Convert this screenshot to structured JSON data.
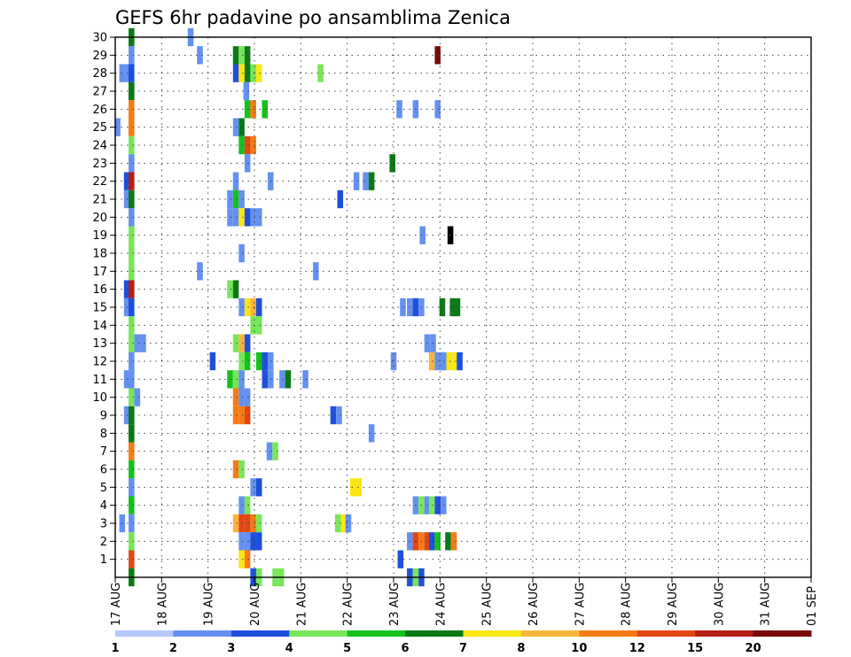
{
  "chart_data": {
    "type": "heatmap",
    "title": "GEFS 6hr padavine po ansamblima Zenica",
    "x_tick_labels": [
      "17 AUG",
      "18 AUG",
      "19 AUG",
      "20 AUG",
      "21 AUG",
      "22 AUG",
      "23 AUG",
      "24 AUG",
      "25 AUG",
      "26 AUG",
      "27 AUG",
      "28 AUG",
      "29 AUG",
      "30 AUG",
      "31 AUG",
      "01 SEP"
    ],
    "y_tick_labels": [
      "1",
      "2",
      "3",
      "4",
      "5",
      "6",
      "7",
      "8",
      "9",
      "10",
      "11",
      "12",
      "13",
      "14",
      "15",
      "16",
      "17",
      "18",
      "19",
      "20",
      "21",
      "22",
      "23",
      "24",
      "25",
      "26",
      "27",
      "28",
      "29",
      "30"
    ],
    "xlim": [
      0,
      60
    ],
    "ylim": [
      0,
      30
    ],
    "grid": true,
    "colorbar": {
      "levels": [
        "1",
        "2",
        "3",
        "4",
        "5",
        "6",
        "7",
        "8",
        "10",
        "12",
        "15",
        "20"
      ],
      "colors": [
        "#b4c8fa",
        "#6490f0",
        "#1e50dc",
        "#78e65a",
        "#16c11c",
        "#0a7a14",
        "#fae614",
        "#fab43c",
        "#f57c14",
        "#e14614",
        "#b41e14",
        "#780a0a"
      ]
    },
    "x_unit": "6-hour step since 17 AUG 00Z",
    "y_unit": "ensemble member",
    "cells": [
      [
        1.4,
        30,
        5
      ],
      [
        6.5,
        30,
        1
      ],
      [
        1.4,
        29,
        1
      ],
      [
        7.3,
        29,
        1
      ],
      [
        10.4,
        29,
        5
      ],
      [
        10.9,
        29,
        3
      ],
      [
        11.4,
        29,
        5
      ],
      [
        27.8,
        29,
        11
      ],
      [
        0.6,
        28,
        1
      ],
      [
        1.1,
        28,
        1
      ],
      [
        1.4,
        28,
        2
      ],
      [
        10.4,
        28,
        2
      ],
      [
        10.9,
        28,
        6
      ],
      [
        11.4,
        28,
        5
      ],
      [
        11.9,
        28,
        3
      ],
      [
        12.4,
        28,
        6
      ],
      [
        17.7,
        28,
        3
      ],
      [
        1.4,
        27,
        5
      ],
      [
        11.3,
        27,
        1
      ],
      [
        1.4,
        26,
        8
      ],
      [
        11.4,
        26,
        4
      ],
      [
        11.9,
        26,
        8
      ],
      [
        12.9,
        26,
        4
      ],
      [
        24.5,
        26,
        1
      ],
      [
        25.9,
        26,
        1
      ],
      [
        27.8,
        26,
        1
      ],
      [
        0.2,
        25,
        1
      ],
      [
        1.4,
        25,
        8
      ],
      [
        10.4,
        25,
        1
      ],
      [
        10.9,
        25,
        5
      ],
      [
        1.4,
        24,
        3
      ],
      [
        10.9,
        24,
        4
      ],
      [
        11.4,
        24,
        9
      ],
      [
        11.9,
        24,
        8
      ],
      [
        1.4,
        23,
        1
      ],
      [
        11.4,
        23,
        1
      ],
      [
        23.9,
        23,
        5
      ],
      [
        1.0,
        22,
        2
      ],
      [
        1.4,
        22,
        10
      ],
      [
        10.4,
        22,
        1
      ],
      [
        13.4,
        22,
        1
      ],
      [
        20.8,
        22,
        1
      ],
      [
        21.6,
        22,
        1
      ],
      [
        22.1,
        22,
        5
      ],
      [
        1.0,
        21,
        1
      ],
      [
        1.4,
        21,
        5
      ],
      [
        9.9,
        21,
        1
      ],
      [
        10.4,
        21,
        4
      ],
      [
        10.9,
        21,
        1
      ],
      [
        19.4,
        21,
        2
      ],
      [
        1.4,
        20,
        1
      ],
      [
        9.9,
        20,
        1
      ],
      [
        10.4,
        20,
        1
      ],
      [
        10.9,
        20,
        6
      ],
      [
        11.4,
        20,
        2
      ],
      [
        11.9,
        20,
        1
      ],
      [
        12.4,
        20,
        1
      ],
      [
        1.4,
        19,
        3
      ],
      [
        26.5,
        19,
        1
      ],
      [
        28.9,
        19,
        12
      ],
      [
        1.4,
        18,
        3
      ],
      [
        10.9,
        18,
        1
      ],
      [
        1.4,
        17,
        3
      ],
      [
        7.3,
        17,
        1
      ],
      [
        17.3,
        17,
        1
      ],
      [
        1.0,
        16,
        2
      ],
      [
        1.4,
        16,
        10
      ],
      [
        9.9,
        16,
        3
      ],
      [
        10.4,
        16,
        5
      ],
      [
        1.0,
        15,
        1
      ],
      [
        1.4,
        15,
        2
      ],
      [
        10.9,
        15,
        1
      ],
      [
        11.4,
        15,
        6
      ],
      [
        11.9,
        15,
        7
      ],
      [
        12.4,
        15,
        2
      ],
      [
        24.8,
        15,
        1
      ],
      [
        25.4,
        15,
        1
      ],
      [
        25.9,
        15,
        2
      ],
      [
        26.4,
        15,
        1
      ],
      [
        28.2,
        15,
        5
      ],
      [
        29.1,
        15,
        5
      ],
      [
        29.5,
        15,
        5
      ],
      [
        1.4,
        14,
        3
      ],
      [
        11.9,
        14,
        3
      ],
      [
        12.4,
        14,
        3
      ],
      [
        1.4,
        13,
        3
      ],
      [
        1.9,
        13,
        1
      ],
      [
        2.4,
        13,
        1
      ],
      [
        10.4,
        13,
        3
      ],
      [
        10.9,
        13,
        7
      ],
      [
        11.4,
        13,
        2
      ],
      [
        26.9,
        13,
        1
      ],
      [
        27.4,
        13,
        1
      ],
      [
        1.4,
        12,
        1
      ],
      [
        8.4,
        12,
        2
      ],
      [
        10.9,
        12,
        3
      ],
      [
        11.4,
        12,
        4
      ],
      [
        12.4,
        12,
        4
      ],
      [
        12.9,
        12,
        2
      ],
      [
        13.4,
        12,
        1
      ],
      [
        24.0,
        12,
        1
      ],
      [
        27.3,
        12,
        7
      ],
      [
        27.8,
        12,
        1
      ],
      [
        28.3,
        12,
        1
      ],
      [
        28.8,
        12,
        6
      ],
      [
        29.3,
        12,
        6
      ],
      [
        29.7,
        12,
        2
      ],
      [
        1.0,
        11,
        1
      ],
      [
        1.4,
        11,
        1
      ],
      [
        9.9,
        11,
        4
      ],
      [
        10.4,
        11,
        3
      ],
      [
        10.9,
        11,
        1
      ],
      [
        12.9,
        11,
        2
      ],
      [
        13.4,
        11,
        1
      ],
      [
        14.4,
        11,
        1
      ],
      [
        14.9,
        11,
        5
      ],
      [
        16.4,
        11,
        1
      ],
      [
        1.4,
        10,
        3
      ],
      [
        1.9,
        10,
        1
      ],
      [
        10.4,
        10,
        8
      ],
      [
        10.9,
        10,
        1
      ],
      [
        11.4,
        10,
        1
      ],
      [
        1.0,
        9,
        1
      ],
      [
        1.4,
        9,
        5
      ],
      [
        10.4,
        9,
        8
      ],
      [
        10.9,
        9,
        8
      ],
      [
        11.4,
        9,
        9
      ],
      [
        18.8,
        9,
        2
      ],
      [
        19.3,
        9,
        1
      ],
      [
        1.4,
        8,
        5
      ],
      [
        22.1,
        8,
        1
      ],
      [
        1.4,
        7,
        8
      ],
      [
        13.3,
        7,
        1
      ],
      [
        13.8,
        7,
        3
      ],
      [
        1.4,
        6,
        4
      ],
      [
        10.4,
        6,
        8
      ],
      [
        10.9,
        6,
        3
      ],
      [
        1.4,
        5,
        1
      ],
      [
        11.9,
        5,
        1
      ],
      [
        12.4,
        5,
        2
      ],
      [
        20.5,
        5,
        6
      ],
      [
        21.0,
        5,
        6
      ],
      [
        1.4,
        4,
        4
      ],
      [
        10.9,
        4,
        1
      ],
      [
        11.4,
        4,
        3
      ],
      [
        25.9,
        4,
        1
      ],
      [
        26.4,
        4,
        3
      ],
      [
        26.9,
        4,
        1
      ],
      [
        27.3,
        4,
        3
      ],
      [
        27.8,
        4,
        2
      ],
      [
        28.3,
        4,
        1
      ],
      [
        0.6,
        3,
        1
      ],
      [
        1.4,
        3,
        1
      ],
      [
        10.4,
        3,
        7
      ],
      [
        10.9,
        3,
        9
      ],
      [
        11.4,
        3,
        9
      ],
      [
        11.9,
        3,
        8
      ],
      [
        12.4,
        3,
        3
      ],
      [
        19.2,
        3,
        3
      ],
      [
        19.7,
        3,
        6
      ],
      [
        20.1,
        3,
        1
      ],
      [
        1.4,
        2,
        3
      ],
      [
        10.9,
        2,
        1
      ],
      [
        11.4,
        2,
        1
      ],
      [
        11.9,
        2,
        2
      ],
      [
        12.4,
        2,
        2
      ],
      [
        25.4,
        2,
        1
      ],
      [
        25.9,
        2,
        9
      ],
      [
        26.4,
        2,
        8
      ],
      [
        26.9,
        2,
        9
      ],
      [
        27.3,
        2,
        2
      ],
      [
        27.8,
        2,
        4
      ],
      [
        28.7,
        2,
        5
      ],
      [
        29.2,
        2,
        8
      ],
      [
        1.4,
        1,
        9
      ],
      [
        10.9,
        1,
        6
      ],
      [
        11.4,
        1,
        8
      ],
      [
        24.6,
        1,
        2
      ],
      [
        1.4,
        0,
        5
      ],
      [
        11.9,
        0,
        2
      ],
      [
        12.4,
        0,
        3
      ],
      [
        13.8,
        0,
        3
      ],
      [
        14.3,
        0,
        3
      ],
      [
        25.4,
        0,
        2
      ],
      [
        25.9,
        0,
        3
      ],
      [
        26.4,
        0,
        2
      ]
    ]
  }
}
